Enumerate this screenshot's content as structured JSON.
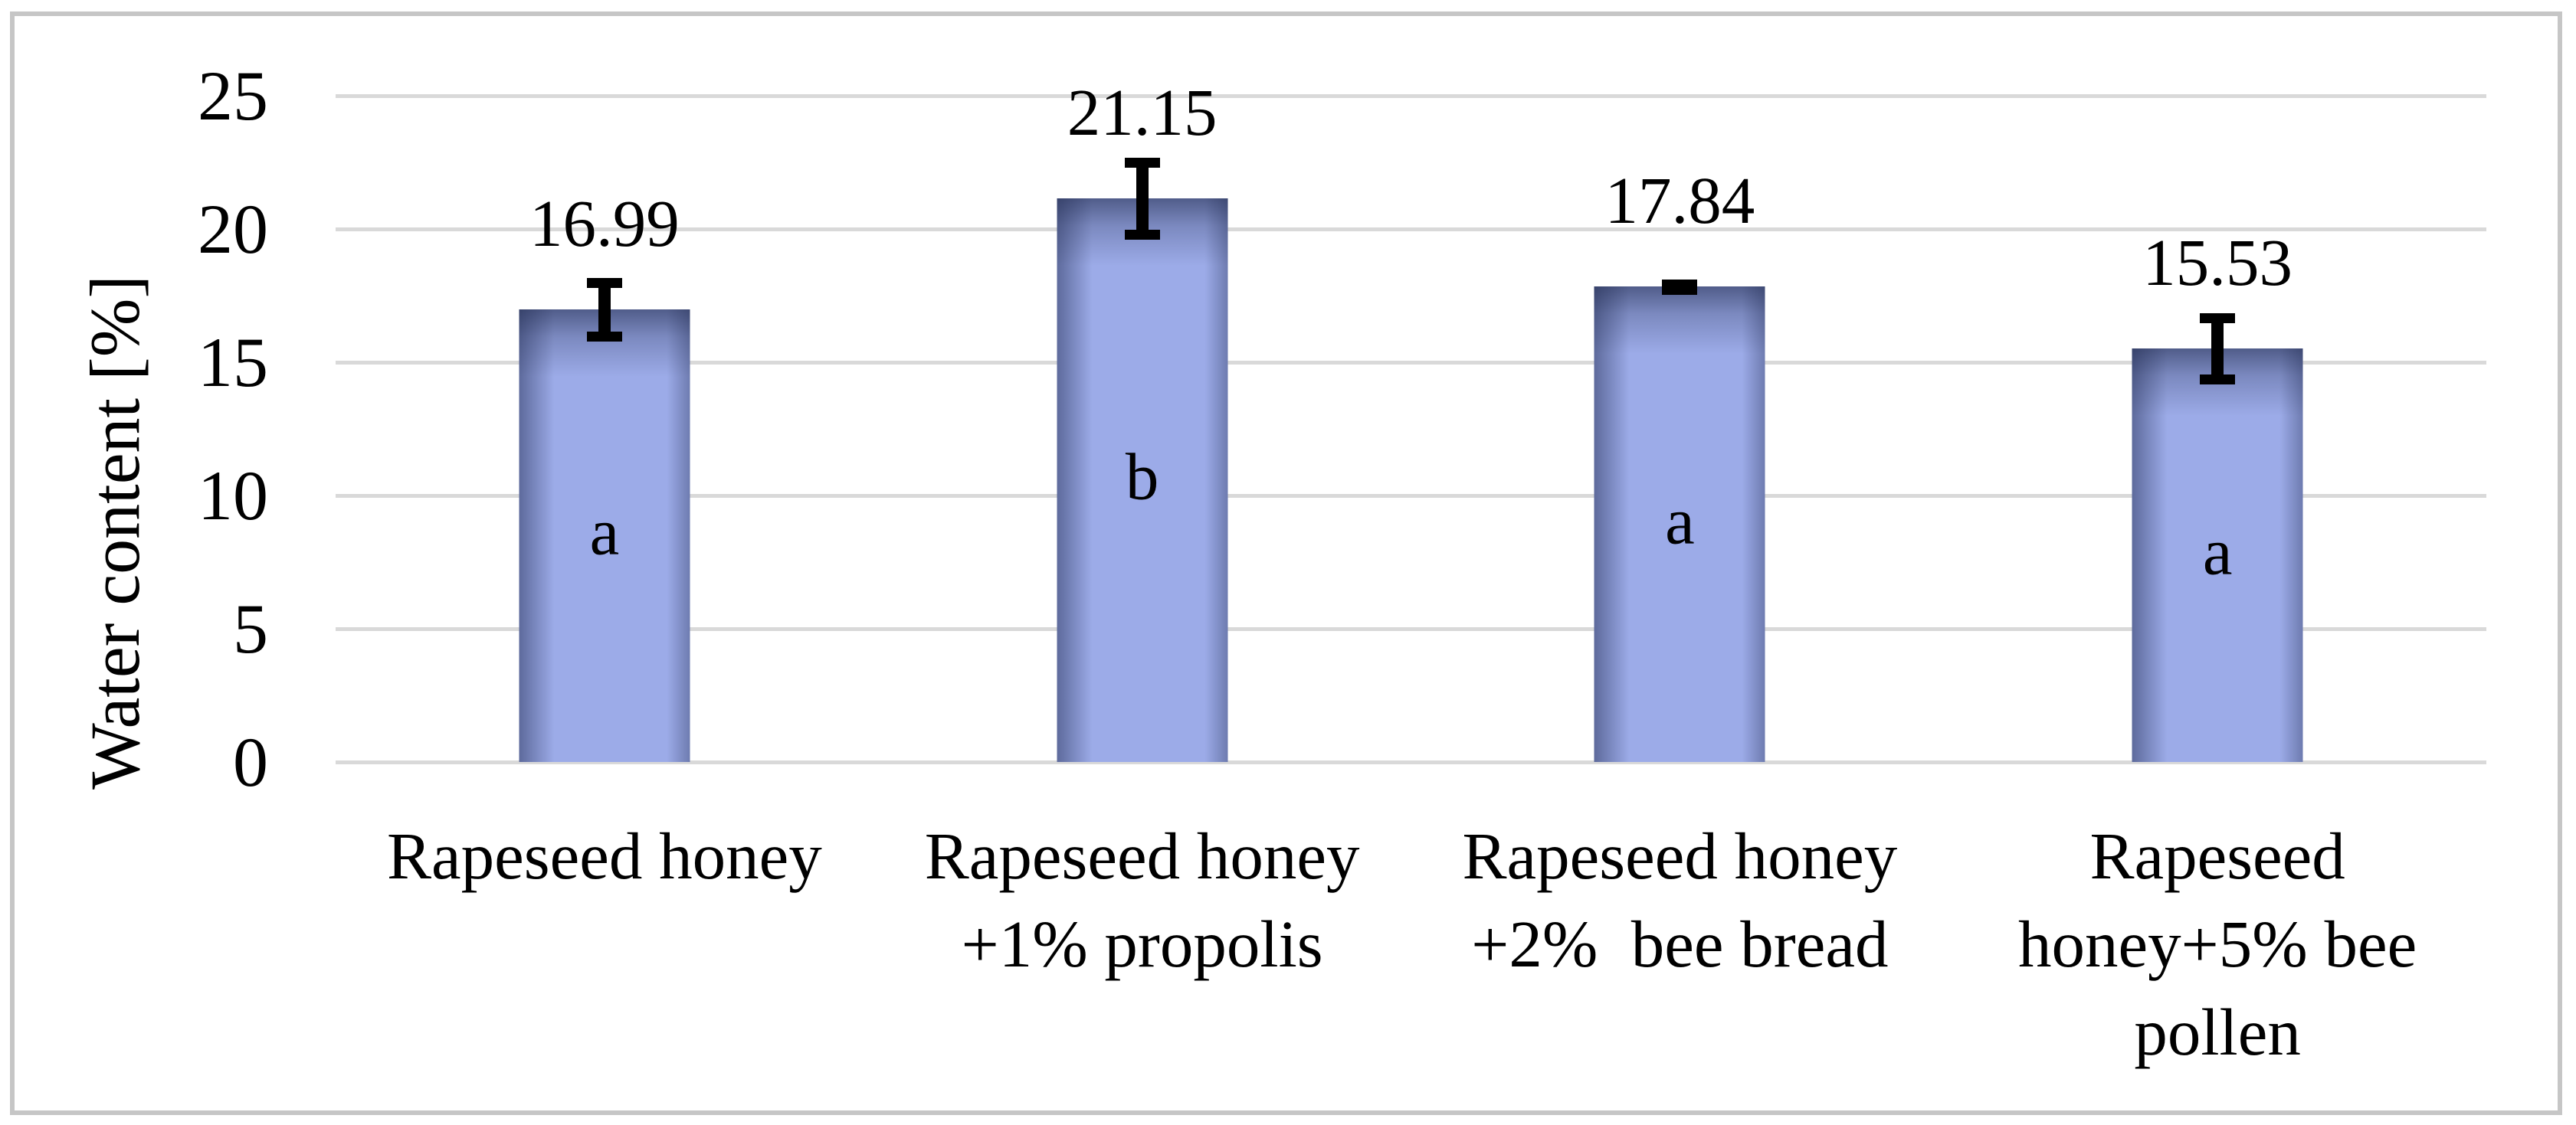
{
  "figure": {
    "background": "#FFFFFF",
    "frame_color": "#C6C6C6"
  },
  "chart_data": {
    "type": "bar",
    "title": "",
    "xlabel": "",
    "ylabel": "Water content [%]",
    "ylim": [
      0,
      25
    ],
    "yticks": [
      0,
      5,
      10,
      15,
      20,
      25
    ],
    "ytick_labels": [
      "0",
      "5",
      "10",
      "15",
      "20",
      "25"
    ],
    "grid": true,
    "legend": "none",
    "categories": [
      "Rapeseed honey",
      "Rapeseed honey\n+1% propolis",
      "Rapeseed honey\n+2%  bee bread",
      "Rapeseed\nhoney+5% bee\npollen"
    ],
    "values": [
      16.99,
      21.15,
      17.84,
      15.53
    ],
    "value_labels": [
      "16.99",
      "21.15",
      "17.84",
      "15.53"
    ],
    "errors": [
      1.0,
      1.35,
      0.1,
      1.15
    ],
    "significance_letters": [
      "a",
      "b",
      "a",
      "a"
    ],
    "colors": {
      "bar_fill": "#9CABE8",
      "bar_shade": "#485482",
      "gridline": "#D9D9D9",
      "error_bar": "#000000",
      "text": "#000000"
    }
  }
}
